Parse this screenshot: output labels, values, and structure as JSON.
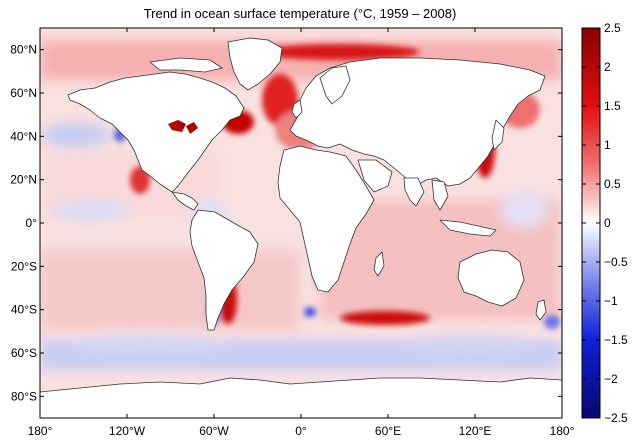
{
  "title": "Trend in ocean surface temperature (°C, 1959 – 2008)",
  "map": {
    "projection": "equirectangular",
    "lon_range": [
      -180,
      180
    ],
    "lat_range": [
      -90,
      90
    ],
    "x_ticks": [
      {
        "lon": -180,
        "label": "180°"
      },
      {
        "lon": -120,
        "label": "120°W"
      },
      {
        "lon": -60,
        "label": "60°W"
      },
      {
        "lon": 0,
        "label": "0°"
      },
      {
        "lon": 60,
        "label": "60°E"
      },
      {
        "lon": 120,
        "label": "120°E"
      },
      {
        "lon": 180,
        "label": "180°"
      }
    ],
    "y_ticks": [
      {
        "lat": 80,
        "label": "80°N"
      },
      {
        "lat": 60,
        "label": "60°N"
      },
      {
        "lat": 40,
        "label": "40°N"
      },
      {
        "lat": 20,
        "label": "20°N"
      },
      {
        "lat": 0,
        "label": "0°"
      },
      {
        "lat": -20,
        "label": "20°S"
      },
      {
        "lat": -40,
        "label": "40°S"
      },
      {
        "lat": -60,
        "label": "60°S"
      },
      {
        "lat": -80,
        "label": "80°S"
      }
    ],
    "land_color": "#ffffff",
    "coastline_color": "#333333"
  },
  "colorbar": {
    "min": -2.5,
    "max": 2.5,
    "colormap": "blue-white-red",
    "colors": {
      "low": "#08086e",
      "mid": "#ffffff",
      "high": "#8b0000"
    },
    "ticks": [
      {
        "value": 2.5,
        "label": "2.5"
      },
      {
        "value": 2,
        "label": "2"
      },
      {
        "value": 1.5,
        "label": "1.5"
      },
      {
        "value": 1,
        "label": "1"
      },
      {
        "value": 0.5,
        "label": "0.5"
      },
      {
        "value": 0,
        "label": "0"
      },
      {
        "value": -0.5,
        "label": "−0.5"
      },
      {
        "value": -1,
        "label": "−1"
      },
      {
        "value": -1.5,
        "label": "−1.5"
      },
      {
        "value": -2,
        "label": "−2"
      },
      {
        "value": -2.5,
        "label": "−2.5"
      }
    ]
  }
}
